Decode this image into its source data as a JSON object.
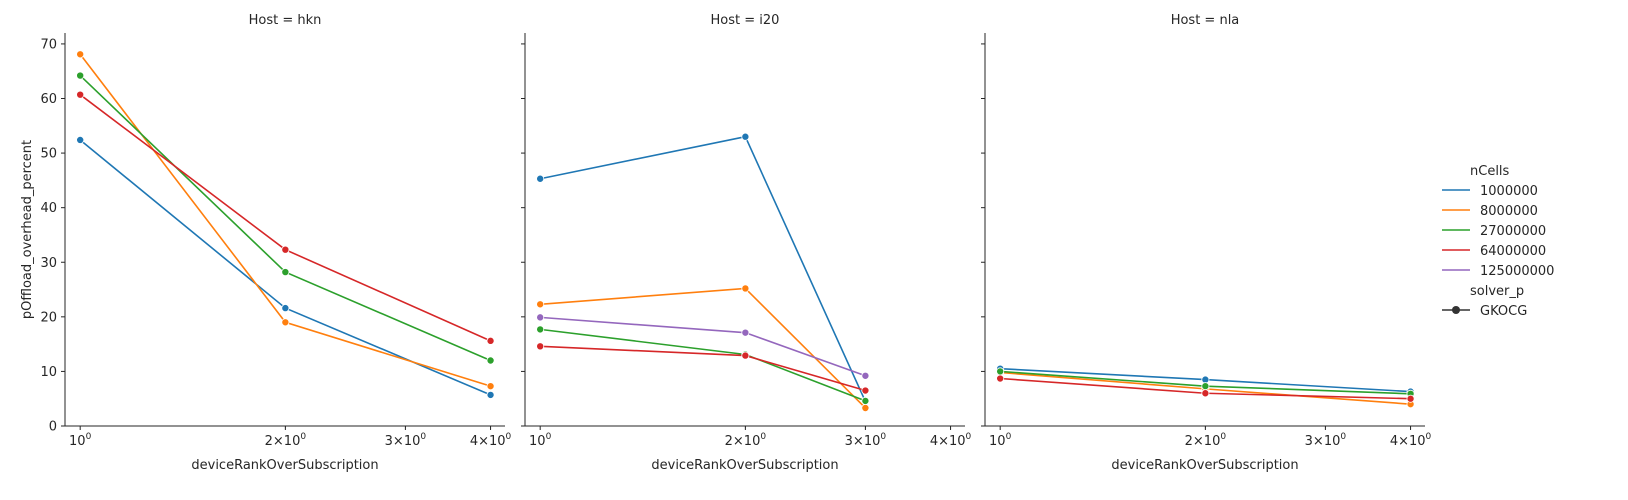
{
  "chart_data": {
    "type": "line",
    "xscale": "log",
    "xlabel": "deviceRankOverSubscription",
    "ylabel": "pOffload_overhead_percent",
    "ylim": [
      0,
      72
    ],
    "xlim": [
      0.95,
      4.2
    ],
    "xticks": [
      {
        "value": 1,
        "base": "10",
        "exp": "0"
      },
      {
        "value": 2,
        "base": "2×10",
        "exp": "0"
      },
      {
        "value": 3,
        "base": "3×10",
        "exp": "0"
      },
      {
        "value": 4,
        "base": "4×10",
        "exp": "0"
      }
    ],
    "yticks": [
      0,
      10,
      20,
      30,
      40,
      50,
      60,
      70
    ],
    "legend": {
      "placement": "right",
      "hue_title": "nCells",
      "style_title": "solver_p",
      "style_entries": [
        "GKOCG"
      ],
      "entries": [
        {
          "label": "1000000",
          "color": "#1f77b4"
        },
        {
          "label": "8000000",
          "color": "#ff7f0e"
        },
        {
          "label": "27000000",
          "color": "#2ca02c"
        },
        {
          "label": "64000000",
          "color": "#d62728"
        },
        {
          "label": "125000000",
          "color": "#9467bd"
        }
      ]
    },
    "panels": [
      {
        "title": "Host = hkn",
        "series": [
          {
            "name": "1000000",
            "color": "#1f77b4",
            "x": [
              1,
              2,
              4
            ],
            "y": [
              52.4,
              21.6,
              5.7
            ]
          },
          {
            "name": "8000000",
            "color": "#ff7f0e",
            "x": [
              1,
              2,
              4
            ],
            "y": [
              68.1,
              19.0,
              7.3
            ]
          },
          {
            "name": "27000000",
            "color": "#2ca02c",
            "x": [
              1,
              2,
              4
            ],
            "y": [
              64.2,
              28.2,
              12.0
            ]
          },
          {
            "name": "64000000",
            "color": "#d62728",
            "x": [
              1,
              2,
              4
            ],
            "y": [
              60.7,
              32.3,
              15.6
            ]
          }
        ]
      },
      {
        "title": "Host = i20",
        "series": [
          {
            "name": "1000000",
            "color": "#1f77b4",
            "x": [
              1,
              2,
              3
            ],
            "y": [
              45.3,
              53.0,
              4.5
            ]
          },
          {
            "name": "8000000",
            "color": "#ff7f0e",
            "x": [
              1,
              2,
              3
            ],
            "y": [
              22.3,
              25.2,
              3.3
            ]
          },
          {
            "name": "27000000",
            "color": "#2ca02c",
            "x": [
              1,
              2,
              3
            ],
            "y": [
              17.7,
              13.1,
              4.6
            ]
          },
          {
            "name": "64000000",
            "color": "#d62728",
            "x": [
              1,
              2,
              3
            ],
            "y": [
              14.6,
              12.9,
              6.5
            ]
          },
          {
            "name": "125000000",
            "color": "#9467bd",
            "x": [
              1,
              2,
              3
            ],
            "y": [
              19.9,
              17.1,
              9.2
            ]
          }
        ]
      },
      {
        "title": "Host = nla",
        "series": [
          {
            "name": "1000000",
            "color": "#1f77b4",
            "x": [
              1,
              2,
              4
            ],
            "y": [
              10.5,
              8.5,
              6.3
            ]
          },
          {
            "name": "8000000",
            "color": "#ff7f0e",
            "x": [
              1,
              2,
              4
            ],
            "y": [
              9.8,
              6.8,
              4.0
            ]
          },
          {
            "name": "27000000",
            "color": "#2ca02c",
            "x": [
              1,
              2,
              4
            ],
            "y": [
              10.0,
              7.3,
              5.9
            ]
          },
          {
            "name": "64000000",
            "color": "#d62728",
            "x": [
              1,
              2,
              4
            ],
            "y": [
              8.7,
              6.0,
              5.0
            ]
          }
        ]
      }
    ]
  }
}
